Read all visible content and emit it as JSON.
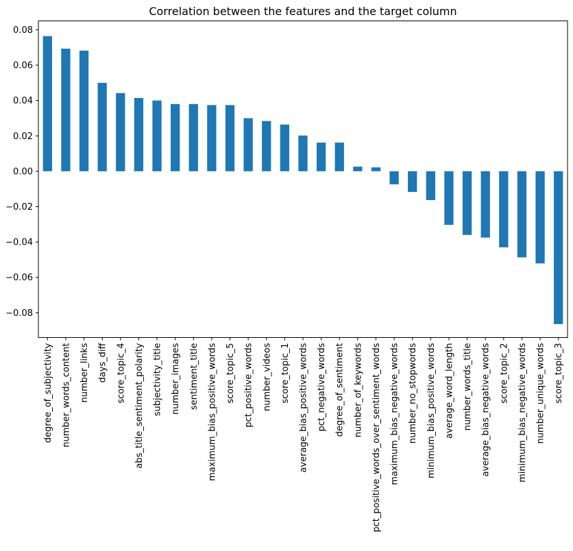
{
  "chart_data": {
    "type": "bar",
    "title": "Correlation between the features and the target column",
    "xlabel": "",
    "ylabel": "",
    "ylim": [
      -0.094,
      0.085
    ],
    "yticks": [
      0.08,
      0.06,
      0.04,
      0.02,
      0.0,
      -0.02,
      -0.04,
      -0.06,
      -0.08
    ],
    "ytick_labels": [
      "0.08",
      "0.06",
      "0.04",
      "0.02",
      "0.00",
      "−0.02",
      "−0.04",
      "−0.06",
      "−0.08"
    ],
    "grid": false,
    "legend": false,
    "bar_color": "#1f77b4",
    "categories": [
      "degree_of_subjectivity",
      "number_words_content",
      "number_links",
      "days_diff",
      "score_topic_4",
      "abs_title_sentiment_polarity",
      "subjectivity_title",
      "number_images",
      "sentiment_title",
      "maximum_bias_positive_words",
      "score_topic_5",
      "pct_positive_words",
      "number_videos",
      "score_topic_1",
      "average_bias_positive_words",
      "pct_negative_words",
      "degree_of_sentiment",
      "number_of_keywords",
      "pct_positive_words_over_sentiment_words",
      "maximum_bias_negative_words",
      "number_no_stopwords",
      "minimum_bias_positive_words",
      "average_word_length",
      "number_words_title",
      "average_bias_negative_words",
      "score_topic_2",
      "minimum_bias_negative_words",
      "number_unique_words",
      "score_topic_3"
    ],
    "values": [
      0.0764,
      0.0693,
      0.0682,
      0.05,
      0.0442,
      0.0414,
      0.04,
      0.038,
      0.038,
      0.0374,
      0.0374,
      0.03,
      0.0284,
      0.0264,
      0.0202,
      0.0162,
      0.0162,
      0.0026,
      0.0022,
      -0.0074,
      -0.0117,
      -0.0163,
      -0.0303,
      -0.036,
      -0.0375,
      -0.043,
      -0.0487,
      -0.0521,
      -0.0864
    ]
  }
}
